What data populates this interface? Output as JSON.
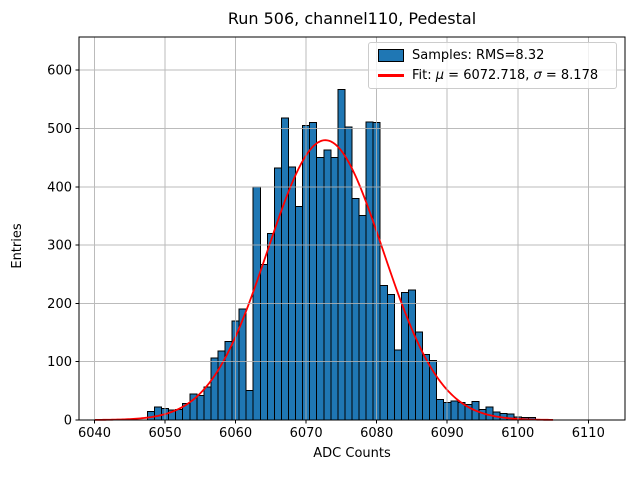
{
  "chart_data": {
    "type": "bar",
    "subtype": "histogram-with-gaussian-fit",
    "title": "Run 506, channel110, Pedestal",
    "xlabel": "ADC Counts",
    "ylabel": "Entries",
    "bin_width": 1,
    "bin_centers": [
      6048,
      6049,
      6050,
      6051,
      6052,
      6053,
      6054,
      6055,
      6056,
      6057,
      6058,
      6059,
      6060,
      6061,
      6062,
      6063,
      6064,
      6065,
      6066,
      6067,
      6068,
      6069,
      6070,
      6071,
      6072,
      6073,
      6074,
      6075,
      6076,
      6077,
      6078,
      6079,
      6080,
      6081,
      6082,
      6083,
      6084,
      6085,
      6086,
      6087,
      6088,
      6089,
      6090,
      6091,
      6092,
      6093,
      6094,
      6095,
      6096,
      6097,
      6098,
      6099,
      6100,
      6101,
      6102
    ],
    "counts": [
      15,
      22,
      20,
      17,
      18,
      28,
      45,
      42,
      57,
      106,
      118,
      135,
      170,
      190,
      51,
      400,
      267,
      320,
      432,
      518,
      434,
      366,
      505,
      510,
      450,
      463,
      450,
      567,
      503,
      380,
      351,
      511,
      510,
      231,
      215,
      120,
      219,
      223,
      151,
      112,
      102,
      35,
      30,
      33,
      30,
      27,
      32,
      18,
      22,
      14,
      11,
      10,
      5,
      4,
      4
    ],
    "x_ticks": [
      6040,
      6050,
      6060,
      6070,
      6080,
      6090,
      6100,
      6110
    ],
    "y_ticks": [
      0,
      100,
      200,
      300,
      400,
      500,
      600
    ],
    "xlim": [
      6037.8,
      6115.2
    ],
    "ylim": [
      0,
      657
    ],
    "grid": true,
    "grid_on_top": true,
    "grid_color": "#b0b0b0",
    "bar_color": "#1f77b4",
    "bar_edge_color": "#000000",
    "background_color": "#ffffff",
    "fit": {
      "type": "gaussian",
      "mu": 6072.718,
      "sigma": 8.178,
      "amplitude": 480,
      "x_range": [
        6040,
        6105
      ],
      "color": "#ff0000"
    },
    "legend": {
      "position": "upper right",
      "entries": [
        {
          "label": "Samples: RMS=8.32",
          "marker": "patch",
          "color": "#1f77b4"
        },
        {
          "label": "Fit: μ = 6072.718, σ = 8.178",
          "marker": "line",
          "color": "#ff0000",
          "parts": [
            "Fit: ",
            "μ",
            " = 6072.718, ",
            "σ",
            " = 8.178"
          ]
        }
      ]
    }
  }
}
